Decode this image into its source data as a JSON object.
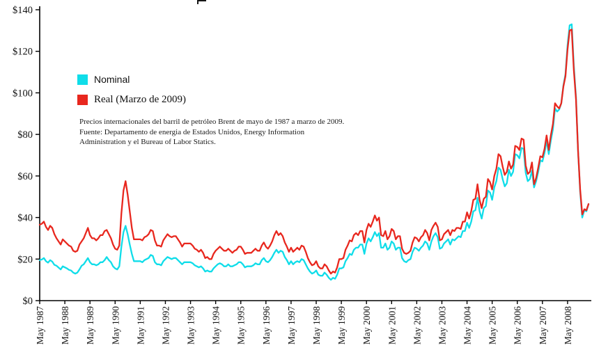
{
  "chart": {
    "legend": [
      {
        "label": "Nominal"
      },
      {
        "label": "Real  (Marzo de 2009)"
      }
    ],
    "caption_lines": [
      "Precios internacionales del barril de petróleo Brent de mayo de 1987 a marzo de 2009.",
      "Fuente: Departamento de energia de Estados Unidos, Energy Information",
      "Administration y el Bureau of Labor Statics."
    ]
  },
  "chart_data": {
    "type": "line",
    "title": "",
    "xlabel": "",
    "ylabel": "",
    "x_unit": "month",
    "x_start": "May 1987",
    "x_end": "Mar 2009",
    "months_per_tick": 12,
    "x_tick_labels": [
      "May 1987",
      "May 1988",
      "May 1989",
      "May 1990",
      "May 1991",
      "May 1992",
      "May 1993",
      "May 1994",
      "May 1995",
      "May 1996",
      "May 1997",
      "May 1998",
      "May 1999",
      "May 2000",
      "May 2001",
      "May 2002",
      "May 2003",
      "May 2004",
      "May 2005",
      "May 2006",
      "May 2007",
      "May 2008"
    ],
    "y_tick_labels": [
      "$0",
      "$20",
      "$40",
      "$60",
      "$80",
      "$100",
      "$120",
      "$140"
    ],
    "y_tick_values": [
      0,
      20,
      40,
      60,
      80,
      100,
      120,
      140
    ],
    "ylim": [
      0,
      140
    ],
    "grid": false,
    "legend_position": "upper-left-inside",
    "series": [
      {
        "name": "Nominal",
        "color": "#0fdde9",
        "values": [
          19.5,
          19.8,
          20.5,
          19.0,
          18.3,
          19.5,
          18.8,
          17.2,
          16.8,
          15.9,
          15.0,
          16.5,
          16.0,
          15.5,
          14.8,
          14.5,
          13.5,
          13.0,
          13.5,
          15.0,
          16.8,
          17.5,
          19.0,
          20.5,
          18.5,
          17.5,
          17.5,
          17.0,
          17.5,
          18.5,
          18.5,
          19.5,
          21.0,
          19.5,
          18.5,
          16.5,
          15.5,
          15.0,
          16.5,
          26.0,
          33.0,
          36.0,
          32.0,
          27.0,
          22.5,
          19.0,
          19.0,
          19.0,
          19.0,
          18.5,
          19.5,
          20.0,
          20.5,
          22.0,
          21.5,
          18.5,
          17.5,
          17.5,
          17.0,
          19.0,
          20.0,
          21.0,
          20.5,
          20.0,
          20.5,
          20.5,
          19.5,
          18.5,
          17.5,
          18.5,
          18.5,
          18.5,
          18.5,
          18.0,
          17.0,
          16.5,
          16.0,
          16.5,
          15.5,
          14.0,
          14.5,
          14.0,
          14.0,
          15.5,
          16.5,
          17.5,
          18.0,
          17.5,
          16.5,
          16.5,
          17.5,
          16.5,
          16.5,
          17.0,
          17.5,
          18.5,
          18.5,
          17.5,
          16.0,
          16.5,
          16.5,
          16.5,
          17.0,
          18.0,
          17.5,
          17.5,
          19.5,
          20.5,
          19.0,
          18.5,
          19.5,
          21.0,
          23.0,
          24.5,
          23.0,
          24.0,
          23.5,
          21.0,
          19.5,
          17.5,
          19.0,
          17.5,
          18.5,
          19.0,
          18.5,
          20.0,
          19.5,
          17.5,
          15.5,
          14.0,
          13.0,
          13.5,
          14.5,
          12.5,
          12.0,
          12.0,
          13.5,
          12.5,
          11.0,
          10.0,
          11.0,
          10.5,
          12.5,
          15.5,
          15.5,
          16.0,
          19.0,
          20.5,
          22.5,
          22.0,
          24.5,
          25.5,
          25.5,
          27.0,
          27.0,
          22.5,
          27.5,
          30.0,
          28.5,
          30.5,
          33.0,
          31.0,
          32.5,
          25.5,
          25.5,
          27.5,
          24.5,
          25.5,
          28.5,
          27.5,
          24.5,
          25.5,
          25.5,
          20.5,
          19.0,
          18.5,
          19.5,
          20.0,
          23.5,
          25.5,
          25.0,
          24.0,
          25.5,
          26.5,
          28.5,
          27.5,
          24.5,
          28.5,
          31.0,
          32.5,
          30.5,
          25.0,
          25.5,
          27.5,
          28.5,
          29.5,
          27.0,
          29.5,
          29.0,
          30.0,
          31.0,
          30.5,
          33.5,
          33.5,
          37.5,
          35.0,
          38.0,
          43.0,
          43.5,
          49.5,
          43.0,
          39.5,
          44.5,
          45.5,
          53.0,
          52.0,
          48.5,
          54.5,
          57.5,
          64.0,
          63.0,
          58.5,
          55.0,
          56.5,
          63.0,
          60.0,
          62.0,
          70.5,
          70.0,
          68.5,
          73.5,
          73.0,
          61.5,
          57.5,
          58.5,
          62.5,
          54.5,
          57.5,
          62.0,
          67.5,
          67.0,
          71.0,
          77.0,
          70.5,
          77.0,
          82.5,
          92.5,
          91.0,
          92.0,
          95.0,
          103.5,
          109.0,
          123.0,
          132.5,
          133.0,
          113.0,
          98.0,
          72.0,
          52.5,
          40.0,
          43.5,
          43.0,
          46.5
        ]
      },
      {
        "name": "Real  (Marzo de 2009)",
        "color": "#e8271e",
        "values": [
          36.5,
          37.0,
          38.0,
          35.5,
          34.0,
          36.0,
          35.0,
          32.0,
          30.0,
          28.5,
          27.0,
          29.5,
          28.5,
          27.5,
          26.5,
          26.0,
          24.0,
          23.5,
          24.0,
          27.0,
          28.5,
          30.0,
          32.5,
          35.0,
          31.5,
          30.0,
          30.0,
          29.0,
          30.0,
          31.5,
          31.5,
          33.5,
          34.0,
          32.0,
          30.0,
          27.0,
          25.0,
          24.5,
          26.5,
          42.0,
          53.0,
          57.5,
          51.0,
          43.0,
          35.0,
          29.5,
          29.5,
          29.5,
          29.5,
          29.0,
          30.5,
          31.0,
          32.0,
          34.0,
          33.5,
          29.0,
          26.5,
          26.5,
          26.0,
          29.0,
          30.5,
          32.0,
          31.0,
          30.5,
          31.0,
          31.0,
          29.5,
          28.0,
          26.0,
          27.5,
          27.5,
          27.5,
          27.5,
          26.5,
          25.0,
          24.5,
          23.5,
          24.5,
          23.0,
          20.5,
          21.0,
          20.0,
          20.0,
          22.5,
          24.0,
          25.0,
          26.0,
          25.0,
          24.0,
          24.0,
          25.0,
          24.0,
          23.0,
          24.0,
          24.5,
          26.0,
          26.0,
          24.5,
          22.5,
          23.0,
          23.0,
          23.0,
          24.0,
          25.0,
          24.0,
          24.0,
          26.5,
          28.0,
          26.0,
          25.0,
          26.5,
          28.5,
          31.5,
          33.5,
          31.5,
          32.5,
          31.0,
          28.0,
          26.0,
          23.5,
          25.5,
          23.5,
          24.5,
          25.5,
          24.5,
          26.5,
          26.0,
          23.5,
          20.5,
          18.5,
          17.0,
          17.5,
          19.0,
          16.5,
          15.5,
          15.5,
          17.5,
          16.5,
          14.5,
          13.0,
          14.0,
          13.5,
          16.0,
          20.0,
          20.0,
          20.5,
          24.5,
          26.5,
          29.0,
          28.5,
          31.5,
          32.5,
          31.5,
          33.5,
          33.5,
          28.0,
          34.0,
          37.0,
          35.5,
          38.0,
          41.0,
          38.5,
          40.0,
          31.5,
          31.0,
          33.5,
          29.5,
          31.0,
          34.5,
          33.5,
          29.5,
          31.0,
          31.0,
          25.0,
          23.0,
          22.5,
          23.0,
          24.0,
          28.0,
          30.5,
          30.0,
          28.5,
          30.5,
          31.5,
          34.0,
          32.5,
          29.0,
          34.0,
          36.0,
          37.5,
          35.5,
          29.0,
          29.5,
          32.0,
          33.0,
          34.0,
          31.5,
          34.0,
          33.5,
          35.0,
          35.0,
          34.5,
          38.0,
          38.0,
          42.5,
          39.5,
          43.0,
          48.5,
          49.0,
          56.0,
          48.5,
          44.5,
          49.0,
          50.0,
          58.5,
          57.0,
          53.5,
          60.0,
          63.5,
          70.5,
          69.5,
          64.5,
          60.5,
          62.0,
          67.0,
          63.5,
          65.5,
          74.5,
          74.0,
          72.5,
          78.0,
          77.5,
          65.0,
          61.0,
          62.0,
          66.5,
          56.0,
          59.0,
          64.0,
          69.5,
          69.0,
          73.0,
          79.5,
          72.5,
          79.5,
          85.0,
          95.0,
          93.5,
          92.5,
          95.0,
          103.0,
          108.0,
          121.0,
          130.0,
          130.5,
          111.0,
          97.0,
          72.0,
          53.5,
          41.5,
          44.0,
          43.5,
          46.5
        ]
      }
    ]
  }
}
